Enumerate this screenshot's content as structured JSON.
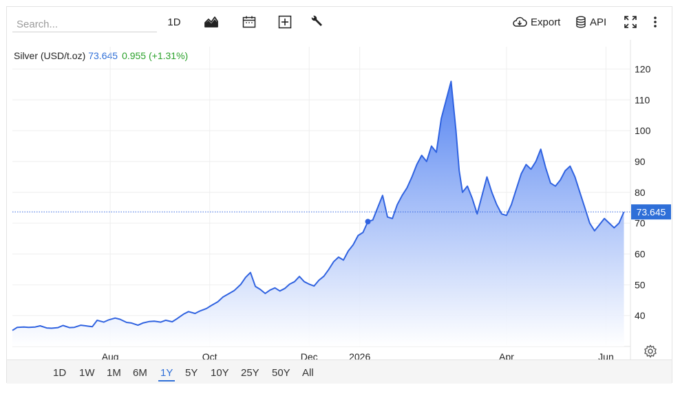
{
  "toolbar": {
    "search_placeholder": "Search...",
    "interval_label": "1D",
    "export_label": "Export",
    "api_label": "API"
  },
  "legend": {
    "name": "Silver (USD/t.oz)",
    "last": "73.645",
    "change": "0.955 (+1.31%)"
  },
  "range_selector": {
    "options": [
      "1D",
      "1W",
      "1M",
      "6M",
      "1Y",
      "5Y",
      "10Y",
      "25Y",
      "50Y",
      "All"
    ],
    "active": "1Y"
  },
  "colors": {
    "line": "#2f62e0",
    "fill_top": "#4a7cf0",
    "fill_bottom": "#ffffff",
    "last_badge": "#2f6fd8",
    "change_positive": "#2aa12a",
    "grid": "#eeeeee"
  },
  "chart_data": {
    "type": "area",
    "title": "Silver (USD/t.oz)",
    "ylim": [
      30,
      125
    ],
    "yticks": [
      40,
      50,
      60,
      70,
      80,
      90,
      100,
      110,
      120
    ],
    "x_tick_labels": [
      {
        "date": "2025-08-01",
        "label": "Aug"
      },
      {
        "date": "2025-10-01",
        "label": "Oct"
      },
      {
        "date": "2025-12-01",
        "label": "Dec"
      },
      {
        "date": "2026-01-01",
        "label": "2026"
      },
      {
        "date": "2026-04-01",
        "label": "Apr"
      },
      {
        "date": "2026-06-01",
        "label": "Jun"
      }
    ],
    "xlim": [
      "2025-06-02",
      "2026-06-16"
    ],
    "last_value": 73.645,
    "grid": true,
    "series": [
      {
        "name": "Silver (USD/t.oz)",
        "points": [
          [
            "2025-06-02",
            35.2
          ],
          [
            "2025-06-05",
            36.2
          ],
          [
            "2025-06-09",
            36.3
          ],
          [
            "2025-06-12",
            36.2
          ],
          [
            "2025-06-16",
            36.3
          ],
          [
            "2025-06-19",
            36.7
          ],
          [
            "2025-06-23",
            36.0
          ],
          [
            "2025-06-26",
            35.9
          ],
          [
            "2025-06-30",
            36.1
          ],
          [
            "2025-07-03",
            36.8
          ],
          [
            "2025-07-07",
            36.1
          ],
          [
            "2025-07-10",
            36.2
          ],
          [
            "2025-07-14",
            36.9
          ],
          [
            "2025-07-17",
            36.7
          ],
          [
            "2025-07-21",
            36.4
          ],
          [
            "2025-07-24",
            38.5
          ],
          [
            "2025-07-28",
            37.9
          ],
          [
            "2025-07-31",
            38.6
          ],
          [
            "2025-08-04",
            39.2
          ],
          [
            "2025-08-07",
            38.8
          ],
          [
            "2025-08-11",
            37.8
          ],
          [
            "2025-08-14",
            37.6
          ],
          [
            "2025-08-18",
            36.9
          ],
          [
            "2025-08-21",
            37.6
          ],
          [
            "2025-08-25",
            38.1
          ],
          [
            "2025-08-28",
            38.2
          ],
          [
            "2025-09-01",
            37.9
          ],
          [
            "2025-09-04",
            38.5
          ],
          [
            "2025-09-08",
            38.0
          ],
          [
            "2025-09-11",
            39.0
          ],
          [
            "2025-09-15",
            40.5
          ],
          [
            "2025-09-18",
            41.3
          ],
          [
            "2025-09-22",
            40.7
          ],
          [
            "2025-09-25",
            41.5
          ],
          [
            "2025-09-29",
            42.3
          ],
          [
            "2025-10-02",
            43.3
          ],
          [
            "2025-10-06",
            44.5
          ],
          [
            "2025-10-09",
            46.0
          ],
          [
            "2025-10-13",
            47.2
          ],
          [
            "2025-10-16",
            48.1
          ],
          [
            "2025-10-20",
            50.1
          ],
          [
            "2025-10-23",
            52.4
          ],
          [
            "2025-10-26",
            54.0
          ],
          [
            "2025-10-29",
            49.5
          ],
          [
            "2025-11-01",
            48.5
          ],
          [
            "2025-11-04",
            47.2
          ],
          [
            "2025-11-07",
            48.3
          ],
          [
            "2025-11-10",
            49.0
          ],
          [
            "2025-11-13",
            48.0
          ],
          [
            "2025-11-16",
            48.8
          ],
          [
            "2025-11-19",
            50.2
          ],
          [
            "2025-11-22",
            51.0
          ],
          [
            "2025-11-25",
            52.7
          ],
          [
            "2025-11-28",
            51.0
          ],
          [
            "2025-12-01",
            50.2
          ],
          [
            "2025-12-04",
            49.6
          ],
          [
            "2025-12-07",
            51.5
          ],
          [
            "2025-12-10",
            52.8
          ],
          [
            "2025-12-13",
            55.0
          ],
          [
            "2025-12-16",
            57.5
          ],
          [
            "2025-12-19",
            59.0
          ],
          [
            "2025-12-22",
            58.0
          ],
          [
            "2025-12-25",
            61.0
          ],
          [
            "2025-12-28",
            63.0
          ],
          [
            "2025-12-31",
            66.0
          ],
          [
            "2026-01-03",
            67.0
          ],
          [
            "2026-01-06",
            70.5
          ],
          [
            "2026-01-09",
            71.0
          ],
          [
            "2026-01-12",
            75.0
          ],
          [
            "2026-01-15",
            79.0
          ],
          [
            "2026-01-18",
            72.0
          ],
          [
            "2026-01-21",
            71.5
          ],
          [
            "2026-01-24",
            76.0
          ],
          [
            "2026-01-27",
            79.0
          ],
          [
            "2026-01-30",
            81.5
          ],
          [
            "2026-02-02",
            85.0
          ],
          [
            "2026-02-05",
            89.0
          ],
          [
            "2026-02-08",
            92.0
          ],
          [
            "2026-02-11",
            90.0
          ],
          [
            "2026-02-14",
            95.0
          ],
          [
            "2026-02-17",
            93.0
          ],
          [
            "2026-02-20",
            104.0
          ],
          [
            "2026-02-23",
            110.0
          ],
          [
            "2026-02-26",
            116.0
          ],
          [
            "2026-03-01",
            100.0
          ],
          [
            "2026-03-03",
            87.0
          ],
          [
            "2026-03-05",
            80.0
          ],
          [
            "2026-03-08",
            82.0
          ],
          [
            "2026-03-11",
            78.0
          ],
          [
            "2026-03-14",
            73.0
          ],
          [
            "2026-03-17",
            79.0
          ],
          [
            "2026-03-20",
            85.0
          ],
          [
            "2026-03-23",
            80.0
          ],
          [
            "2026-03-26",
            76.0
          ],
          [
            "2026-03-29",
            73.0
          ],
          [
            "2026-04-01",
            72.5
          ],
          [
            "2026-04-04",
            76.0
          ],
          [
            "2026-04-07",
            81.0
          ],
          [
            "2026-04-10",
            86.0
          ],
          [
            "2026-04-13",
            89.0
          ],
          [
            "2026-04-16",
            87.5
          ],
          [
            "2026-04-19",
            90.0
          ],
          [
            "2026-04-22",
            94.0
          ],
          [
            "2026-04-25",
            88.0
          ],
          [
            "2026-04-28",
            83.0
          ],
          [
            "2026-05-01",
            82.0
          ],
          [
            "2026-05-04",
            84.0
          ],
          [
            "2026-05-07",
            87.0
          ],
          [
            "2026-05-10",
            88.5
          ],
          [
            "2026-05-13",
            85.0
          ],
          [
            "2026-05-16",
            80.0
          ],
          [
            "2026-05-19",
            75.0
          ],
          [
            "2026-05-22",
            70.0
          ],
          [
            "2026-05-25",
            67.5
          ],
          [
            "2026-05-28",
            69.5
          ],
          [
            "2026-05-31",
            71.5
          ],
          [
            "2026-06-03",
            70.0
          ],
          [
            "2026-06-06",
            68.5
          ],
          [
            "2026-06-09",
            70.0
          ],
          [
            "2026-06-12",
            73.645
          ]
        ]
      }
    ]
  }
}
